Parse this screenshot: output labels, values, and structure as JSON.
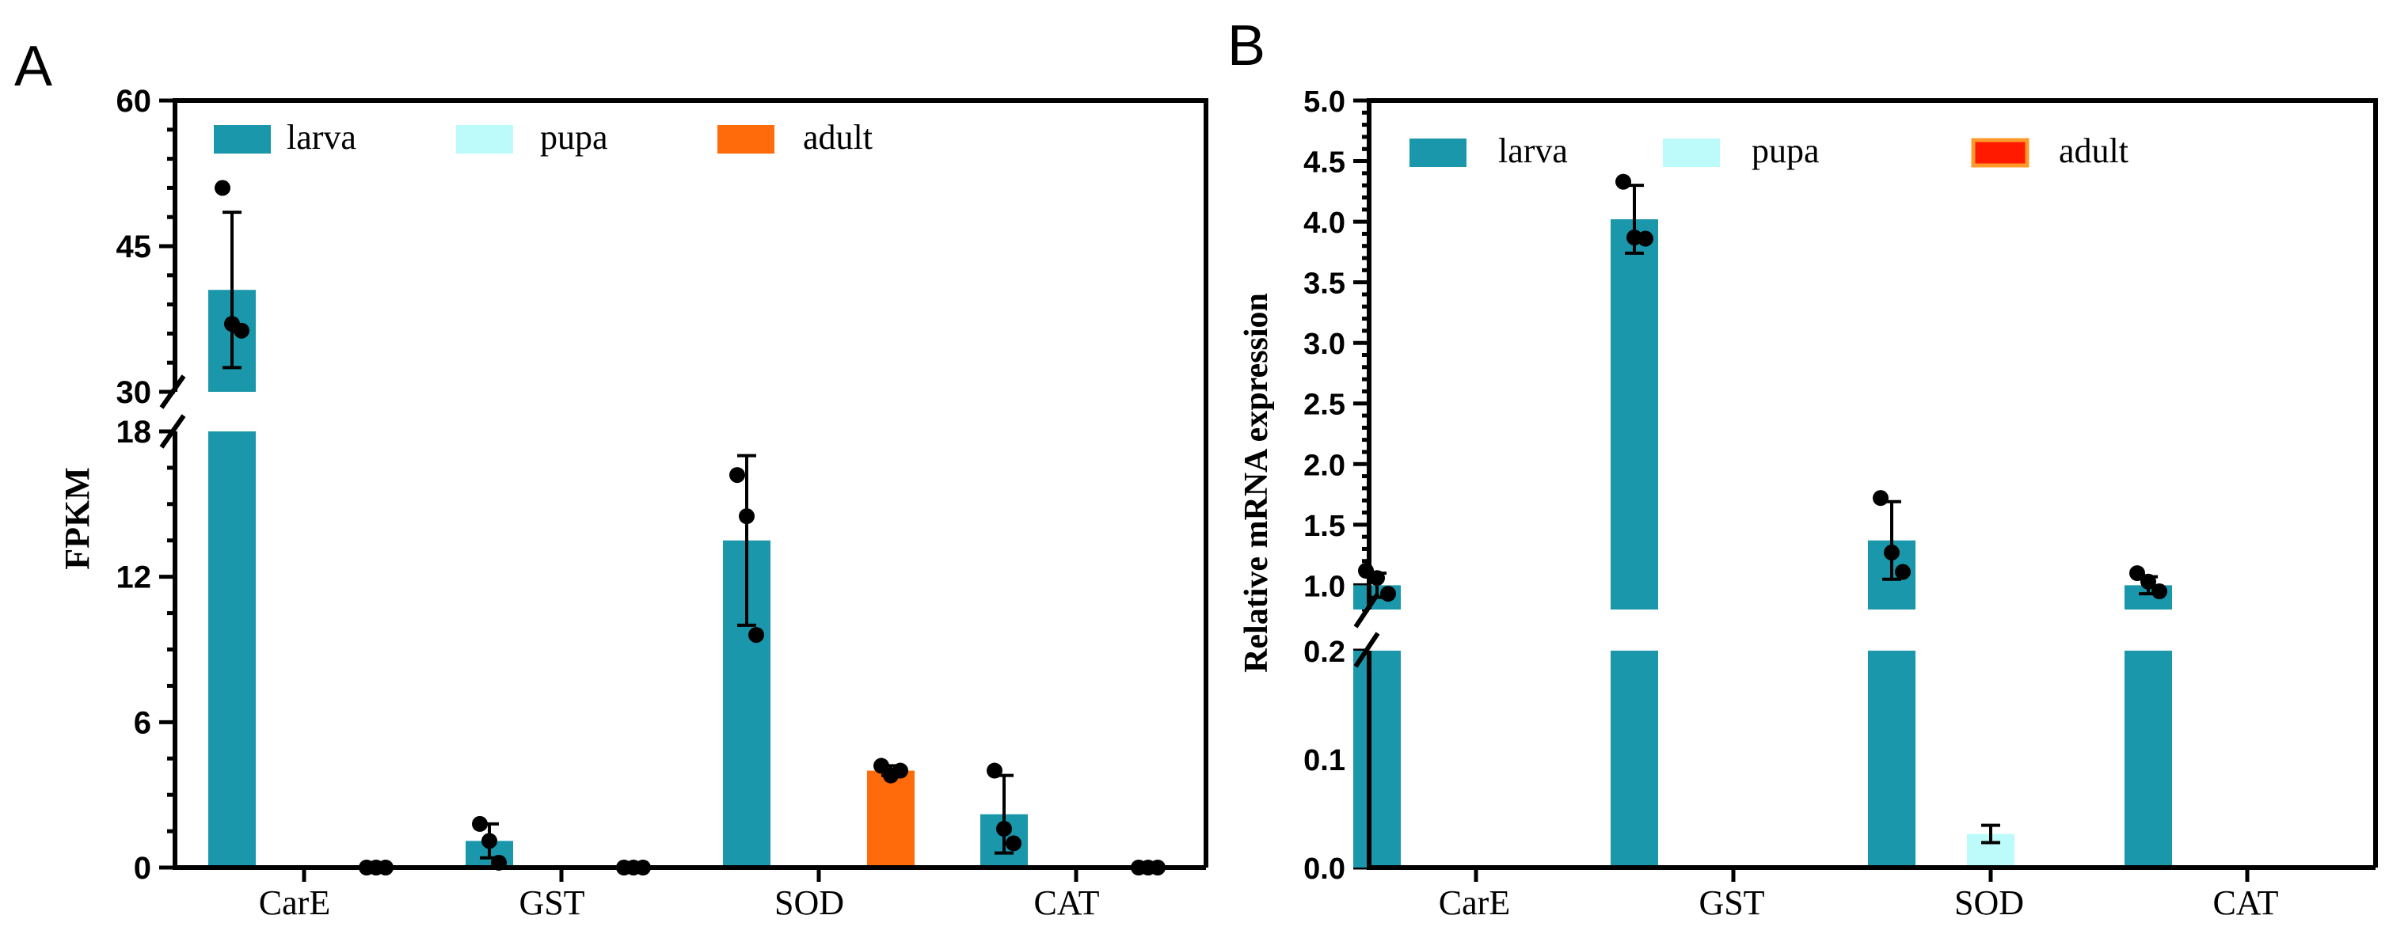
{
  "colors": {
    "larva": "#1a97ab",
    "pupa": "#bdfbfb",
    "adult_A": "#ff6a0a",
    "adult_B_fill": "#ff1a00",
    "adult_B_edge": "#ff9a2a",
    "axis": "#000000",
    "dot": "#000000"
  },
  "chart_data": [
    {
      "panel_label": "A",
      "type": "bar",
      "ylabel": "FPKM",
      "xlabel": "",
      "categories": [
        "CarE",
        "GST",
        "SOD",
        "CAT"
      ],
      "series": [
        {
          "name": "larva",
          "values": [
            40.5,
            1.1,
            13.5,
            2.2
          ],
          "errors": [
            8.0,
            0.7,
            3.5,
            1.6
          ],
          "points": [
            [
              51.0,
              37.0,
              36.3
            ],
            [
              1.8,
              1.1,
              0.2
            ],
            [
              16.2,
              14.5,
              9.6
            ],
            [
              4.0,
              1.6,
              1.0
            ]
          ]
        },
        {
          "name": "pupa",
          "values": [
            0,
            0,
            0,
            0
          ],
          "errors": [
            0,
            0,
            0,
            0
          ],
          "points": [
            [],
            [],
            [],
            []
          ]
        },
        {
          "name": "adult",
          "values": [
            0,
            0,
            4.0,
            0
          ],
          "errors": [
            0,
            0,
            0.2,
            0
          ],
          "points": [
            [
              0,
              0,
              0
            ],
            [
              0,
              0,
              0
            ],
            [
              4.2,
              3.8,
              4.0
            ],
            [
              0,
              0,
              0
            ]
          ]
        }
      ],
      "axis": {
        "break_range": [
          18,
          30
        ],
        "lower": {
          "ylim": [
            0,
            18
          ],
          "ticks": [
            0,
            6,
            12,
            18
          ],
          "tick_labels": [
            "0",
            "6",
            "12",
            "18"
          ],
          "minor_step": 1.5
        },
        "upper": {
          "ylim": [
            30,
            60
          ],
          "ticks": [
            30,
            45,
            60
          ],
          "tick_labels": [
            "30",
            "45",
            "60"
          ],
          "minor_step": 3
        }
      },
      "legend": {
        "position": "top-left",
        "entries": [
          "larva",
          "pupa",
          "adult"
        ]
      }
    },
    {
      "panel_label": "B",
      "type": "bar",
      "ylabel": "Relative mRNA expression",
      "xlabel": "",
      "categories": [
        "CarE",
        "GST",
        "SOD",
        "CAT"
      ],
      "series": [
        {
          "name": "larva",
          "values": [
            1.0,
            4.02,
            1.37,
            1.0
          ],
          "errors": [
            0.1,
            0.28,
            0.32,
            0.07
          ],
          "points": [
            [
              1.12,
              1.06,
              0.93
            ],
            [
              4.33,
              3.87,
              3.86
            ],
            [
              1.72,
              1.27,
              1.11
            ],
            [
              1.1,
              1.03,
              0.95
            ]
          ]
        },
        {
          "name": "pupa",
          "values": [
            0,
            0,
            0.031,
            0
          ],
          "errors": [
            0,
            0,
            0.008,
            0
          ],
          "points": [
            [],
            [],
            [],
            []
          ]
        },
        {
          "name": "adult",
          "values": [
            0,
            0,
            0,
            0
          ],
          "errors": [
            0,
            0,
            0,
            0
          ],
          "points": [
            [],
            [],
            [],
            []
          ]
        }
      ],
      "axis": {
        "break_range": [
          0.2,
          0.8
        ],
        "lower": {
          "ylim": [
            0,
            0.2
          ],
          "ticks": [
            0,
            0.1,
            0.2
          ],
          "tick_labels": [
            "0.0",
            "0.1",
            "0.2"
          ],
          "minor_step": 0.025
        },
        "upper": {
          "ylim": [
            0.8,
            5.0
          ],
          "ticks": [
            1.0,
            1.5,
            2.0,
            2.5,
            3.0,
            3.5,
            4.0,
            4.5,
            5.0
          ],
          "tick_labels": [
            "1.0",
            "1.5",
            "2.0",
            "2.5",
            "3.0",
            "3.5",
            "4.0",
            "4.5",
            "5.0"
          ],
          "minor_step": 0.1
        }
      },
      "legend": {
        "position": "top-left",
        "entries": [
          "larva",
          "pupa",
          "adult"
        ]
      }
    }
  ]
}
